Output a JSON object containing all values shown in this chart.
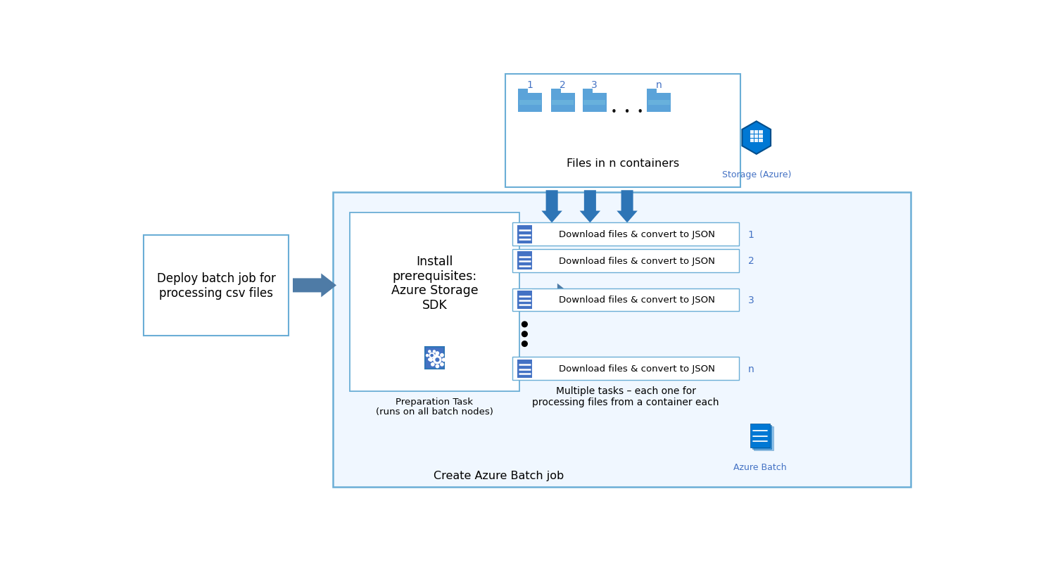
{
  "bg_color": "#ffffff",
  "blue_dark": "#2E75B6",
  "blue_mid": "#4472C4",
  "blue_border": "#6BAED6",
  "blue_label": "#4472C4",
  "arrow_color": "#4E7BA6",
  "title_text": "Deploy batch job for\nprocessing csv files",
  "prep_text": "Install\nprerequisites:\nAzure Storage\nSDK",
  "prep_task_text": "Preparation Task\n(runs on all batch nodes)",
  "main_label": "Create Azure Batch job",
  "files_label": "Files in n containers",
  "task_label": "Download files & convert to JSON",
  "multi_label": "Multiple tasks – each one for\nprocessing files from a container each",
  "storage_label": "Storage (Azure)",
  "batch_label": "Azure Batch",
  "folder_color": "#5BA3D9",
  "doc_color": "#4472C4",
  "storage_hex_color": "#0078D4",
  "batch_page_color": "#0078D4"
}
